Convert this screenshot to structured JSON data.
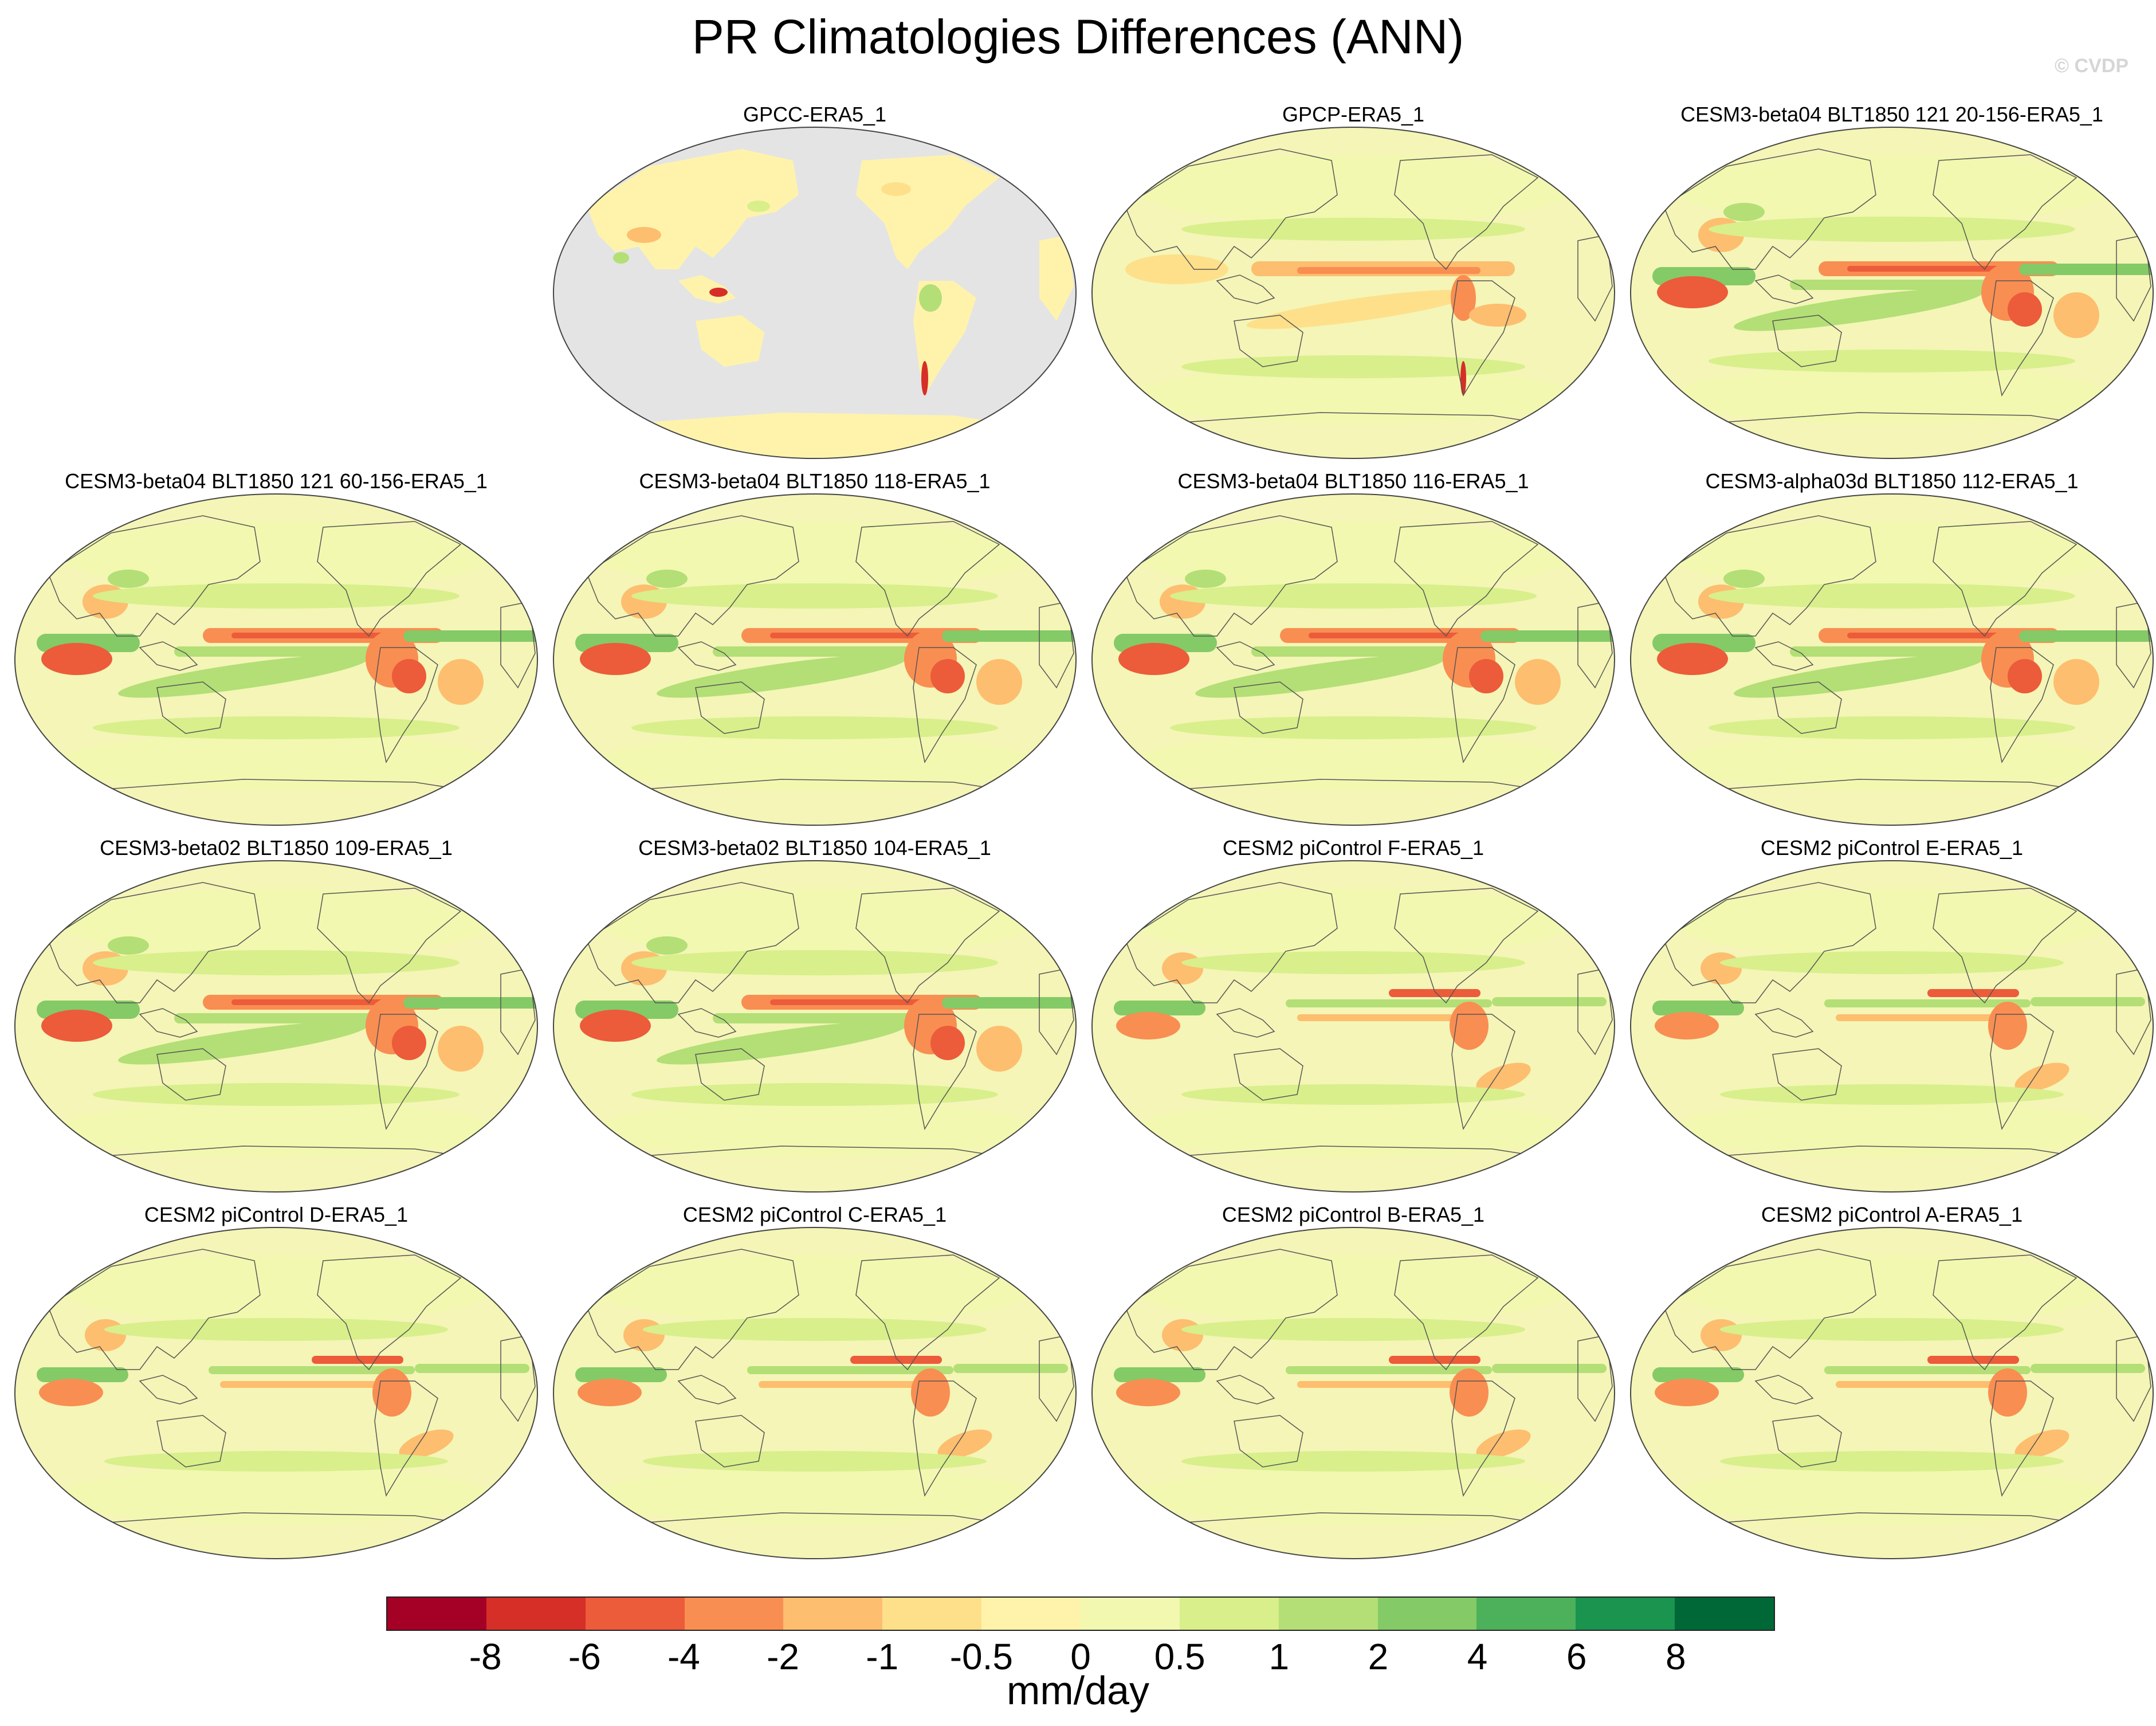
{
  "title": "PR Climatologies Differences (ANN)",
  "watermark": "© CVDP",
  "panels": [
    {
      "label": "GPCC-ERA5_1",
      "style": "land-only"
    },
    {
      "label": "GPCP-ERA5_1",
      "style": "obs"
    },
    {
      "label": "CESM3-beta04 BLT1850 121 20-156-ERA5_1",
      "style": "model"
    },
    {
      "label": "CESM3-beta04 BLT1850 121 60-156-ERA5_1",
      "style": "model"
    },
    {
      "label": "CESM3-beta04 BLT1850 118-ERA5_1",
      "style": "model"
    },
    {
      "label": "CESM3-beta04 BLT1850 116-ERA5_1",
      "style": "model"
    },
    {
      "label": "CESM3-alpha03d BLT1850 112-ERA5_1",
      "style": "model"
    },
    {
      "label": "CESM3-beta02 BLT1850 109-ERA5_1",
      "style": "model"
    },
    {
      "label": "CESM3-beta02 BLT1850 104-ERA5_1",
      "style": "model"
    },
    {
      "label": "CESM2 piControl F-ERA5_1",
      "style": "cesm2"
    },
    {
      "label": "CESM2 piControl E-ERA5_1",
      "style": "cesm2"
    },
    {
      "label": "CESM2 piControl D-ERA5_1",
      "style": "cesm2"
    },
    {
      "label": "CESM2 piControl C-ERA5_1",
      "style": "cesm2"
    },
    {
      "label": "CESM2 piControl B-ERA5_1",
      "style": "cesm2"
    },
    {
      "label": "CESM2 piControl A-ERA5_1",
      "style": "cesm2"
    }
  ],
  "colorbar": {
    "units": "mm/day",
    "colors": [
      "#a50026",
      "#d62f27",
      "#ec5b3a",
      "#f98e52",
      "#fdbe6f",
      "#fee08b",
      "#fff3ac",
      "#f2f8b0",
      "#d8ef8b",
      "#b3df76",
      "#84ca66",
      "#4db05b",
      "#1a944f",
      "#006837"
    ],
    "ticks": [
      "-8",
      "-6",
      "-4",
      "-2",
      "-1",
      "-0.5",
      "0",
      "0.5",
      "1",
      "2",
      "4",
      "6",
      "8"
    ]
  },
  "map_colors": {
    "background": "#f4f5b6",
    "missing": "#e4e4e4",
    "coast": "#555555"
  }
}
